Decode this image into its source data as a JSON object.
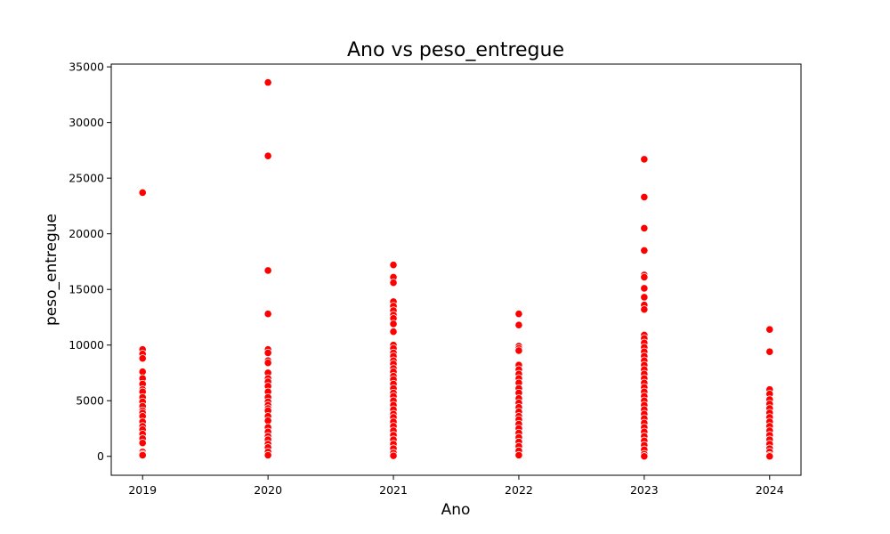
{
  "chart_data": {
    "type": "scatter",
    "title": "Ano vs peso_entregue",
    "xlabel": "Ano",
    "ylabel": "peso_entregue",
    "xlim": [
      2018.75,
      2024.25
    ],
    "ylim": [
      -1700,
      35250
    ],
    "x_ticks": [
      2019,
      2020,
      2021,
      2022,
      2023,
      2024
    ],
    "x_tick_labels": [
      "2019",
      "2020",
      "2021",
      "2022",
      "2023",
      "2024"
    ],
    "y_ticks": [
      0,
      5000,
      10000,
      15000,
      20000,
      25000,
      30000,
      35000
    ],
    "y_tick_labels": [
      "0",
      "5000",
      "10000",
      "15000",
      "20000",
      "25000",
      "30000",
      "35000"
    ],
    "grid": false,
    "point_color": "#ff0000",
    "points": [
      {
        "x": 2019,
        "y": [
          23700,
          9600,
          9200,
          8800,
          7600,
          7000,
          6500,
          6000,
          5800,
          5300,
          4900,
          4500,
          4100,
          3900,
          3600,
          3100,
          2700,
          2400,
          2000,
          1600,
          1200,
          400,
          200,
          100
        ]
      },
      {
        "x": 2020,
        "y": [
          33600,
          27000,
          16700,
          12800,
          9600,
          9300,
          8600,
          8400,
          7500,
          7000,
          6700,
          6300,
          5800,
          5300,
          4900,
          4600,
          4300,
          4100,
          3600,
          3200,
          2600,
          2200,
          1800,
          1500,
          1100,
          800,
          400,
          100
        ]
      },
      {
        "x": 2021,
        "y": [
          17200,
          16100,
          15600,
          13900,
          13500,
          13100,
          12700,
          12400,
          11900,
          11200,
          10000,
          9700,
          9300,
          9000,
          8600,
          8300,
          7900,
          7600,
          7200,
          6900,
          6500,
          6100,
          5700,
          5400,
          5000,
          4600,
          4200,
          3800,
          3500,
          3100,
          2700,
          2300,
          1900,
          1500,
          1100,
          700,
          300,
          50
        ]
      },
      {
        "x": 2022,
        "y": [
          12800,
          11800,
          9900,
          9700,
          9500,
          8200,
          7800,
          7400,
          7000,
          6600,
          6100,
          5700,
          5200,
          4800,
          4400,
          4000,
          3600,
          3300,
          2900,
          2500,
          2100,
          1700,
          1300,
          900,
          500,
          100
        ]
      },
      {
        "x": 2023,
        "y": [
          26700,
          23300,
          20500,
          18500,
          16300,
          16100,
          15100,
          14300,
          13600,
          13200,
          10900,
          10600,
          10200,
          9800,
          9400,
          9000,
          8600,
          8200,
          7800,
          7400,
          7000,
          6600,
          6200,
          5800,
          5400,
          5000,
          4600,
          4200,
          3800,
          3400,
          3000,
          2600,
          2200,
          1800,
          1400,
          1000,
          600,
          200,
          0
        ]
      },
      {
        "x": 2024,
        "y": [
          11400,
          9400,
          6000,
          5600,
          5100,
          4700,
          4300,
          3900,
          3500,
          3100,
          2700,
          2300,
          1900,
          1500,
          1100,
          700,
          400,
          100,
          0
        ]
      }
    ]
  }
}
